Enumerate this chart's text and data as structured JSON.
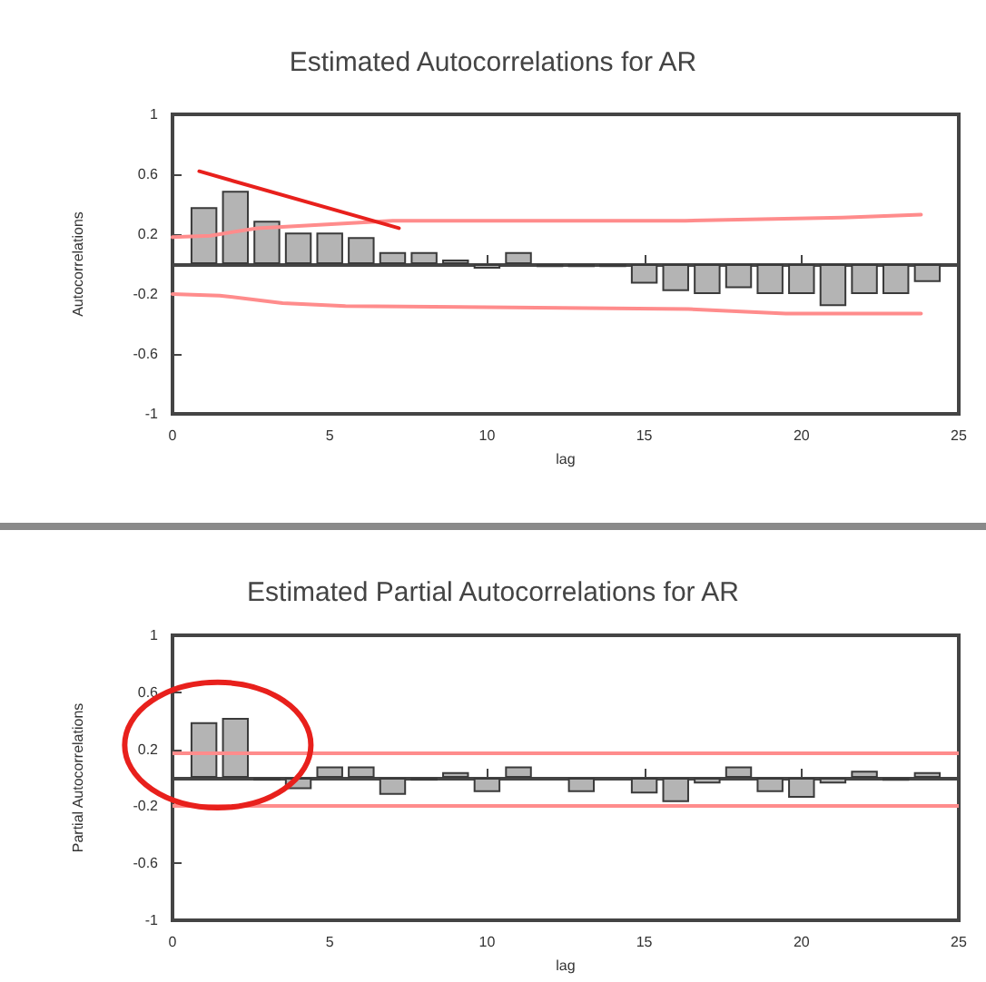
{
  "chart_data": [
    {
      "type": "bar",
      "title": "Estimated Autocorrelations for AR",
      "xlabel": "lag",
      "ylabel": "Autocorrelations",
      "x": [
        1,
        2,
        3,
        4,
        5,
        6,
        7,
        8,
        9,
        10,
        11,
        12,
        13,
        14,
        15,
        16,
        17,
        18,
        19,
        20,
        21,
        22,
        23,
        24
      ],
      "xlim": [
        0,
        25
      ],
      "xticks": [
        0,
        5,
        10,
        15,
        20,
        25
      ],
      "ylim": [
        -1,
        1
      ],
      "yticks": [
        -1,
        -0.6,
        -0.2,
        0.2,
        0.6,
        1
      ],
      "series": [
        {
          "color": "#b4b4b4",
          "values": [
            0.38,
            0.49,
            0.29,
            0.21,
            0.21,
            0.18,
            0.08,
            0.08,
            0.03,
            -0.03,
            0.08,
            -0.02,
            -0.02,
            -0.02,
            -0.13,
            -0.18,
            -0.2,
            -0.16,
            -0.2,
            -0.2,
            -0.28,
            -0.2,
            -0.2,
            -0.12
          ]
        },
        {
          "type": "line",
          "color": "#ff8c8c",
          "x": [
            0,
            1.2,
            2.7,
            7,
            16.3,
            21.3,
            23.8
          ],
          "values": [
            0.18,
            0.19,
            0.24,
            0.29,
            0.29,
            0.31,
            0.33
          ]
        },
        {
          "type": "line",
          "color": "#ff8c8c",
          "x": [
            0,
            1.5,
            3.5,
            5.5,
            16.4,
            19.5,
            23.8
          ],
          "values": [
            -0.2,
            -0.21,
            -0.26,
            -0.28,
            -0.3,
            -0.33,
            -0.33
          ]
        },
        {
          "type": "line",
          "color": "#e8201c",
          "x": [
            0.85,
            7.2
          ],
          "values": [
            0.62,
            0.24
          ]
        }
      ],
      "grid": false,
      "marker": "none",
      "line_style": "solid"
    },
    {
      "type": "bar",
      "title": "Estimated Partial Autocorrelations for AR",
      "xlabel": "lag",
      "ylabel": "Partial Autocorrelations",
      "x": [
        1,
        2,
        3,
        4,
        5,
        6,
        7,
        8,
        9,
        10,
        11,
        12,
        13,
        14,
        15,
        16,
        17,
        18,
        19,
        20,
        21,
        22,
        23,
        24
      ],
      "xlim": [
        0,
        25
      ],
      "xticks": [
        0,
        5,
        10,
        15,
        20,
        25
      ],
      "ylim": [
        -1,
        1
      ],
      "yticks": [
        -1,
        -0.6,
        -0.2,
        0.2,
        0.6,
        1
      ],
      "series": [
        {
          "color": "#b4b4b4",
          "values": [
            0.39,
            0.42,
            -0.02,
            -0.08,
            0.08,
            0.08,
            -0.12,
            -0.02,
            0.04,
            -0.1,
            0.08,
            null,
            -0.1,
            null,
            -0.11,
            -0.17,
            -0.04,
            0.08,
            -0.1,
            -0.14,
            -0.04,
            0.05,
            -0.02,
            0.04
          ]
        }
      ],
      "ref_lines": [
        {
          "axis": "y",
          "value": 0.18,
          "color": "#ff8c8c"
        },
        {
          "axis": "y",
          "value": -0.2,
          "color": "#ff8c8c"
        }
      ],
      "grid": false
    }
  ]
}
